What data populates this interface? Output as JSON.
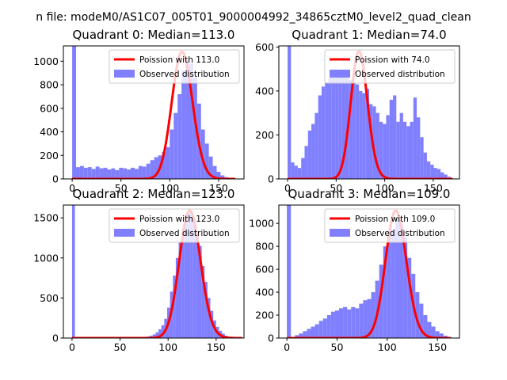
{
  "suptitle": "n file: modeM0/AS1C07_005T01_9000004992_34865cztM0_level2_quad_clean",
  "colors": {
    "hist": "#8080ff",
    "line": "#ff0000",
    "axis": "#000000"
  },
  "chart_data": [
    {
      "type": "bar",
      "title": "Quadrant 0: Median=113.0",
      "xlim": [
        -9,
        176
      ],
      "ylim": [
        0,
        1130
      ],
      "xticks": [
        0,
        50,
        100,
        150
      ],
      "yticks": [
        0,
        200,
        400,
        600,
        800,
        1000
      ],
      "legend": [
        "Poission with 113.0",
        "Observed distribution"
      ],
      "legend_position": "top-right",
      "bin_width": 4,
      "hist_x": [
        0,
        4,
        8,
        12,
        16,
        20,
        24,
        28,
        32,
        36,
        40,
        44,
        48,
        52,
        56,
        60,
        64,
        68,
        72,
        76,
        80,
        84,
        88,
        92,
        96,
        100,
        104,
        108,
        112,
        116,
        120,
        124,
        128,
        132,
        136,
        140,
        144,
        148,
        152,
        156,
        160
      ],
      "hist_y": [
        1130,
        100,
        110,
        95,
        100,
        85,
        105,
        90,
        95,
        80,
        90,
        75,
        95,
        90,
        80,
        95,
        85,
        110,
        105,
        130,
        160,
        185,
        200,
        230,
        270,
        420,
        560,
        720,
        920,
        1010,
        980,
        860,
        640,
        420,
        300,
        190,
        110,
        60,
        30,
        15,
        5
      ],
      "poisson_lambda": 113.0,
      "poisson_peak": 1080,
      "poisson_range": [
        0,
        167
      ]
    },
    {
      "type": "bar",
      "title": "Quadrant 1: Median=74.0",
      "xlim": [
        -9,
        177
      ],
      "ylim": [
        0,
        605
      ],
      "xticks": [
        0,
        50,
        100,
        150
      ],
      "yticks": [
        0,
        200,
        400,
        600
      ],
      "legend": [
        "Poission with 74.0",
        "Observed distribution"
      ],
      "legend_position": "top-right",
      "bin_width": 3.5,
      "hist_x": [
        0,
        3.5,
        7,
        10.5,
        14,
        17.5,
        21,
        24.5,
        28,
        31.5,
        35,
        38.5,
        42,
        45.5,
        49,
        52.5,
        56,
        59.5,
        63,
        66.5,
        70,
        73.5,
        77,
        80.5,
        84,
        87.5,
        91,
        94.5,
        98,
        101.5,
        105,
        108.5,
        112,
        115.5,
        119,
        122.5,
        126,
        129.5,
        133,
        136.5,
        140,
        143.5,
        147,
        150.5,
        154,
        157.5,
        161,
        164.5
      ],
      "hist_y": [
        605,
        75,
        60,
        50,
        95,
        150,
        220,
        250,
        300,
        380,
        420,
        440,
        460,
        470,
        480,
        470,
        470,
        460,
        450,
        440,
        430,
        400,
        390,
        410,
        340,
        330,
        300,
        260,
        250,
        290,
        360,
        380,
        260,
        300,
        260,
        240,
        260,
        370,
        280,
        190,
        120,
        80,
        65,
        50,
        45,
        30,
        20,
        10
      ],
      "poisson_lambda": 74.0,
      "poisson_peak": 580,
      "poisson_range": [
        0,
        170
      ]
    },
    {
      "type": "bar",
      "title": "Quadrant 2: Median=123.0",
      "xlim": [
        -9,
        179
      ],
      "ylim": [
        0,
        1660
      ],
      "xticks": [
        0,
        50,
        100,
        150
      ],
      "yticks": [
        0,
        500,
        1000,
        1500
      ],
      "legend": [
        "Poission with 123.0",
        "Observed distribution"
      ],
      "legend_position": "top-right",
      "bin_width": 3,
      "hist_x": [
        0,
        3,
        6,
        9,
        12,
        15,
        18,
        21,
        24,
        27,
        30,
        33,
        36,
        39,
        42,
        45,
        48,
        51,
        54,
        57,
        60,
        63,
        66,
        69,
        72,
        75,
        78,
        81,
        84,
        87,
        90,
        93,
        96,
        99,
        102,
        105,
        108,
        111,
        114,
        117,
        120,
        123,
        126,
        129,
        132,
        135,
        138,
        141,
        144,
        147,
        150,
        153,
        156,
        159,
        162,
        165,
        168,
        171,
        174,
        177
      ],
      "hist_y": [
        1660,
        8,
        8,
        8,
        8,
        8,
        8,
        8,
        8,
        8,
        8,
        8,
        8,
        8,
        8,
        8,
        8,
        8,
        8,
        8,
        8,
        8,
        8,
        8,
        10,
        15,
        20,
        30,
        45,
        70,
        110,
        160,
        240,
        380,
        580,
        780,
        1000,
        1200,
        1380,
        1500,
        1560,
        1580,
        1500,
        1300,
        1150,
        900,
        700,
        500,
        340,
        220,
        140,
        90,
        55,
        30,
        15,
        8,
        5,
        3,
        2,
        1
      ],
      "poisson_lambda": 123.0,
      "poisson_peak": 1590,
      "poisson_range": [
        0,
        177
      ]
    },
    {
      "type": "bar",
      "title": "Quadrant 3: Median=109.0",
      "xlim": [
        -8,
        172
      ],
      "ylim": [
        0,
        1160
      ],
      "xticks": [
        0,
        50,
        100,
        150
      ],
      "yticks": [
        0,
        200,
        400,
        600,
        800,
        1000
      ],
      "legend": [
        "Poission with 109.0",
        "Observed distribution"
      ],
      "legend_position": "top-right",
      "bin_width": 4,
      "hist_x": [
        0,
        4,
        8,
        12,
        16,
        20,
        24,
        28,
        32,
        36,
        40,
        44,
        48,
        52,
        56,
        60,
        64,
        68,
        72,
        76,
        80,
        84,
        88,
        92,
        96,
        100,
        104,
        108,
        112,
        116,
        120,
        124,
        128,
        132,
        136,
        140,
        144,
        148,
        152,
        156,
        160
      ],
      "hist_y": [
        1160,
        10,
        25,
        40,
        60,
        80,
        100,
        120,
        150,
        170,
        200,
        230,
        240,
        260,
        270,
        250,
        270,
        260,
        300,
        330,
        340,
        400,
        500,
        640,
        800,
        900,
        950,
        1050,
        1000,
        880,
        700,
        560,
        400,
        300,
        200,
        140,
        100,
        60,
        40,
        20,
        10
      ],
      "poisson_lambda": 109.0,
      "poisson_peak": 1110,
      "poisson_range": [
        0,
        163
      ]
    }
  ]
}
